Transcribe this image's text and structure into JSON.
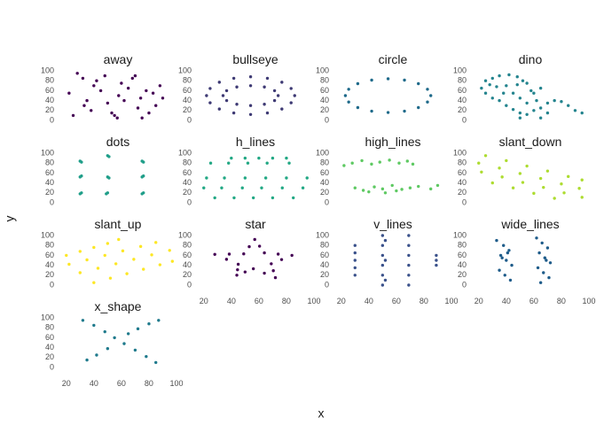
{
  "chart_data": {
    "type": "scatter",
    "xlabel": "x",
    "ylabel": "y",
    "xlim": [
      15,
      100
    ],
    "ylim": [
      -5,
      105
    ],
    "xticks": [
      20,
      40,
      60,
      80,
      100
    ],
    "yticks": [
      0,
      20,
      40,
      60,
      80,
      100
    ],
    "panels": [
      {
        "title": "away",
        "color": "#440154",
        "x": [
          32,
          45,
          55,
          70,
          85,
          22,
          38,
          60,
          75,
          90,
          28,
          50,
          65,
          80,
          35,
          42,
          58,
          72,
          88,
          25,
          48,
          62,
          78,
          33,
          53,
          68,
          83,
          40,
          57,
          74
        ],
        "y": [
          85,
          60,
          10,
          90,
          30,
          55,
          20,
          75,
          5,
          45,
          95,
          35,
          65,
          15,
          40,
          80,
          50,
          25,
          70,
          10,
          90,
          40,
          60,
          30,
          15,
          85,
          55,
          70,
          5,
          45
        ]
      },
      {
        "title": "bullseye",
        "color": "#3e3a74",
        "x": [
          86,
          83.4,
          76.7,
          66.2,
          54,
          41.8,
          31.3,
          24.6,
          22,
          24.6,
          31.3,
          41.8,
          54,
          66.2,
          76.7,
          83.4,
          74,
          71.4,
          64,
          54,
          44,
          36.6,
          34,
          36.6,
          44,
          54,
          64,
          71.4
        ],
        "y": [
          50,
          64.4,
          77,
          85,
          88,
          85,
          77,
          64.4,
          50,
          35.6,
          23,
          15,
          12,
          15,
          23,
          35.6,
          50,
          60,
          67.4,
          70,
          67.4,
          60,
          50,
          40,
          32.6,
          30,
          32.6,
          40
        ]
      },
      {
        "title": "circle",
        "color": "#1f6a8a",
        "x": [
          85,
          82.6,
          76,
          65.9,
          54,
          42.1,
          32,
          25.4,
          23,
          25.4,
          32,
          42.1,
          54,
          65.9,
          76,
          82.6
        ],
        "y": [
          50,
          62.9,
          74.1,
          81.3,
          84,
          81.3,
          74.1,
          62.9,
          50,
          37.1,
          25.9,
          18.7,
          16,
          18.7,
          25.9,
          37.1
        ]
      },
      {
        "title": "dino",
        "color": "#24848e",
        "x": [
          30,
          35,
          42,
          48,
          52,
          55,
          48,
          40,
          33,
          28,
          25,
          22,
          25,
          30,
          35,
          40,
          45,
          50,
          55,
          60,
          65,
          70,
          75,
          80,
          85,
          90,
          95,
          60,
          65,
          58,
          50,
          55,
          62,
          45,
          70,
          50,
          65,
          38
        ],
        "y": [
          85,
          90,
          92,
          88,
          80,
          75,
          72,
          70,
          68,
          72,
          80,
          65,
          55,
          45,
          40,
          30,
          22,
          15,
          12,
          20,
          25,
          35,
          40,
          38,
          30,
          20,
          15,
          55,
          65,
          60,
          45,
          35,
          40,
          55,
          15,
          5,
          5,
          55
        ]
      },
      {
        "title": "dots",
        "color": "#1f9e89",
        "x": [
          30,
          31,
          30,
          31,
          30,
          31,
          50,
          51,
          50,
          51,
          49,
          50,
          75,
          76,
          75,
          76,
          75,
          76
        ],
        "y": [
          84,
          82,
          52,
          54,
          18,
          20,
          95,
          93,
          52,
          50,
          18,
          20,
          84,
          82,
          52,
          54,
          18,
          20
        ]
      },
      {
        "title": "h_lines",
        "color": "#22a884",
        "x": [
          40,
          50,
          60,
          70,
          80,
          25,
          38,
          52,
          66,
          82,
          22,
          35,
          50,
          65,
          80,
          95,
          20,
          33,
          48,
          62,
          77,
          92,
          28,
          42,
          56,
          70,
          85
        ],
        "y": [
          90,
          90,
          90,
          90,
          90,
          80,
          80,
          80,
          80,
          80,
          50,
          50,
          50,
          50,
          50,
          50,
          30,
          30,
          30,
          30,
          30,
          30,
          10,
          10,
          10,
          10,
          10
        ]
      },
      {
        "title": "high_lines",
        "color": "#5ec962",
        "x": [
          22,
          28,
          35,
          42,
          48,
          55,
          62,
          68,
          72,
          30,
          36,
          44,
          50,
          57,
          64,
          70,
          76,
          85,
          90,
          40,
          52,
          60
        ],
        "y": [
          75,
          80,
          85,
          78,
          82,
          86,
          80,
          84,
          78,
          30,
          25,
          32,
          28,
          35,
          27,
          30,
          33,
          28,
          35,
          22,
          20,
          24
        ]
      },
      {
        "title": "slant_down",
        "color": "#addc30",
        "x": [
          25,
          40,
          55,
          70,
          85,
          95,
          20,
          35,
          50,
          65,
          80,
          93,
          22,
          37,
          52,
          67,
          82,
          95,
          30,
          45,
          60,
          75
        ],
        "y": [
          95,
          85,
          74,
          64,
          53,
          46,
          80,
          70,
          59,
          49,
          38,
          29,
          62,
          52,
          41,
          31,
          20,
          11,
          40,
          30,
          19,
          9
        ]
      },
      {
        "title": "slant_up",
        "color": "#fde725",
        "x": [
          20,
          30,
          40,
          50,
          58,
          22,
          35,
          48,
          61,
          74,
          85,
          30,
          43,
          56,
          69,
          82,
          95,
          40,
          52,
          64,
          76,
          88,
          97
        ],
        "y": [
          60,
          68,
          76,
          84,
          92,
          42,
          51,
          60,
          69,
          78,
          86,
          25,
          34,
          43,
          52,
          61,
          70,
          5,
          14,
          23,
          32,
          41,
          48
        ]
      },
      {
        "title": "star",
        "color": "#440154",
        "x": [
          57,
          64,
          84,
          69,
          72,
          56,
          44,
          45,
          28,
          49,
          60.5,
          74,
          76.5,
          70.5,
          64,
          50,
          44.5,
          36.5,
          38.5,
          53
        ],
        "y": [
          92,
          65,
          60,
          43,
          15,
          33,
          20,
          42,
          62,
          63,
          78.5,
          62.5,
          51.5,
          29,
          24,
          26.5,
          31,
          52,
          62.5,
          77.5
        ]
      },
      {
        "title": "v_lines",
        "color": "#3b528b",
        "x": [
          30,
          30,
          30,
          30,
          30,
          50,
          50,
          50,
          50,
          50,
          50,
          52,
          52,
          52,
          69,
          69,
          69,
          69,
          69,
          69,
          89,
          89,
          89
        ],
        "y": [
          20,
          35,
          50,
          65,
          80,
          0,
          20,
          40,
          60,
          80,
          100,
          10,
          50,
          90,
          0,
          20,
          40,
          60,
          80,
          100,
          40,
          50,
          60
        ]
      },
      {
        "title": "wide_lines",
        "color": "#1f5c8a",
        "x": [
          33,
          38,
          42,
          36,
          40,
          44,
          35,
          39,
          43,
          37,
          41,
          62,
          66,
          70,
          64,
          68,
          72,
          63,
          67,
          71,
          65,
          69
        ],
        "y": [
          90,
          80,
          70,
          60,
          50,
          40,
          30,
          20,
          10,
          55,
          65,
          95,
          85,
          75,
          65,
          55,
          45,
          35,
          25,
          15,
          5,
          50
        ]
      },
      {
        "title": "x_shape",
        "color": "#1f7a8c",
        "x": [
          32,
          40,
          48,
          55,
          62,
          70,
          78,
          85,
          35,
          42,
          50,
          65,
          72,
          80,
          87
        ],
        "y": [
          95,
          85,
          72,
          60,
          48,
          35,
          22,
          10,
          15,
          25,
          38,
          68,
          78,
          88,
          95
        ]
      }
    ]
  }
}
